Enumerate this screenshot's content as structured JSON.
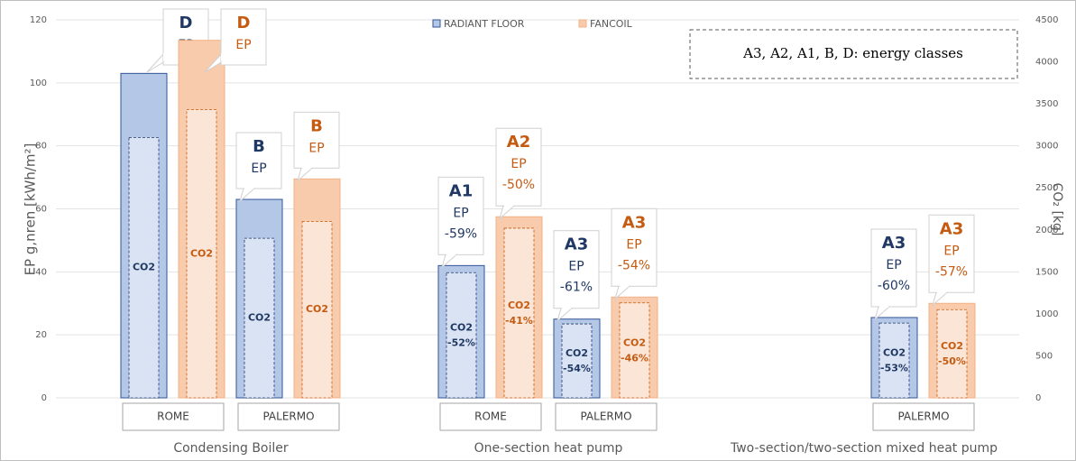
{
  "chart_data": {
    "type": "bar",
    "y_label": "EP g,nren [kWh/m²]",
    "y2_label": "CO₂ [kg]",
    "ylim": [
      0,
      120
    ],
    "yticks": [
      0,
      20,
      40,
      60,
      80,
      100,
      120
    ],
    "y2lim": [
      0,
      4500
    ],
    "y2ticks": [
      0,
      500,
      1000,
      1500,
      2000,
      2500,
      3000,
      3500,
      4000,
      4500
    ],
    "grid": true,
    "legend": "top",
    "annotation": "A3, A2, A1, B, D: energy classes",
    "ep_label": "EP",
    "co2_label": "CO2",
    "groups": [
      "Condensing Boiler",
      "One-section heat pump",
      "Two-section/two-section mixed heat pump"
    ],
    "category_group": [
      0,
      0,
      1,
      1,
      2
    ],
    "categories": [
      "ROME",
      "PALERMO",
      "ROME",
      "PALERMO",
      "PALERMO"
    ],
    "series": [
      {
        "name": "RADIANT FLOOR",
        "color": "#b4c7e7",
        "edge": "#2f5597",
        "text_color": "#1f3864",
        "inner_color": "#dae3f3",
        "values": [
          103,
          63,
          42,
          25,
          25.5
        ],
        "co2": [
          3100,
          1900,
          1490,
          880,
          890
        ],
        "energy_class": [
          "D",
          "B",
          "A1",
          "A3",
          "A3"
        ],
        "ep_change": [
          null,
          null,
          "-59%",
          "-61%",
          "-60%"
        ],
        "co2_change": [
          null,
          null,
          "-52%",
          "-54%",
          "-53%"
        ]
      },
      {
        "name": "FANCOIL",
        "color": "#f8cbad",
        "edge": "#f4b183",
        "text_color": "#c55a11",
        "inner_color": "#fbe5d6",
        "values": [
          113.5,
          69.5,
          57.5,
          32,
          30
        ],
        "co2": [
          3430,
          2100,
          2020,
          1130,
          1050
        ],
        "energy_class": [
          "D",
          "B",
          "A2",
          "A3",
          "A3"
        ],
        "ep_change": [
          null,
          null,
          "-50%",
          "-54%",
          "-57%"
        ],
        "co2_change": [
          null,
          null,
          "-41%",
          "-46%",
          "-50%"
        ]
      }
    ]
  }
}
